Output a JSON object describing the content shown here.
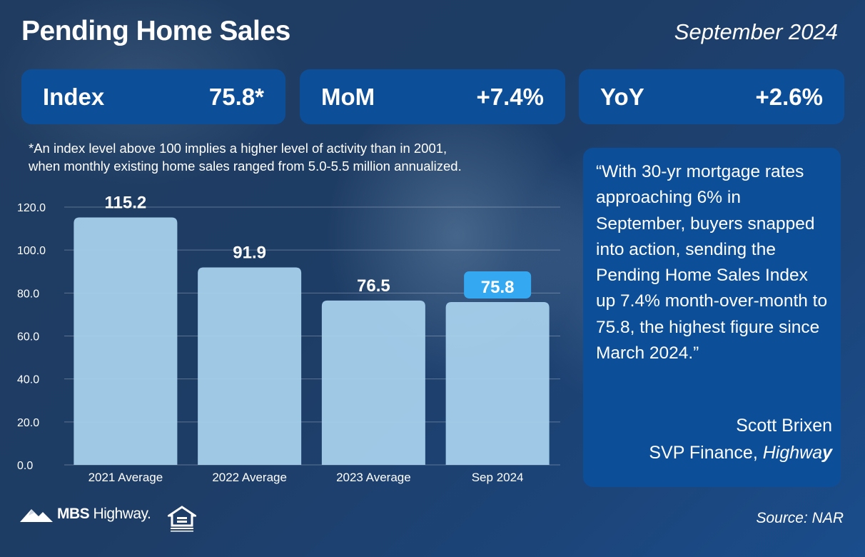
{
  "header": {
    "title": "Pending Home Sales",
    "date": "September 2024"
  },
  "kpis": [
    {
      "label": "Index",
      "value": "75.8*"
    },
    {
      "label": "MoM",
      "value": "+7.4%"
    },
    {
      "label": "YoY",
      "value": "+2.6%"
    }
  ],
  "note": {
    "line1": "*An index level above 100 implies a higher level of activity than in 2001,",
    "line2": "when monthly existing home sales ranged from 5.0-5.5 million annualized."
  },
  "quote": {
    "text": "“With 30-yr mortgage rates approaching 6% in September, buyers snapped into action, sending the Pending Home Sales Index up 7.4% month-over-month to 75.8, the highest figure since March 2024.”",
    "author": "Scott Brixen",
    "role": "SVP Finance, ",
    "company_start": "Highwa",
    "company_end": "y"
  },
  "footer": {
    "logo_bold": "MBS",
    "logo_rest": " Highway.",
    "source": "Source: NAR"
  },
  "colors": {
    "bar": "#a9d4ef",
    "highlight": "#34a9f2",
    "panel": "#0d4e99"
  },
  "chart_data": {
    "type": "bar",
    "categories": [
      "2021 Average",
      "2022 Average",
      "2023 Average",
      "Sep 2024"
    ],
    "values": [
      115.2,
      91.9,
      76.5,
      75.8
    ],
    "value_labels": [
      "115.2",
      "91.9",
      "76.5",
      "75.8"
    ],
    "highlight_index": 3,
    "yticks": [
      "0.0",
      "20.0",
      "40.0",
      "60.0",
      "80.0",
      "100.0",
      "120.0"
    ],
    "ylim": [
      0,
      120
    ],
    "grid": true
  }
}
